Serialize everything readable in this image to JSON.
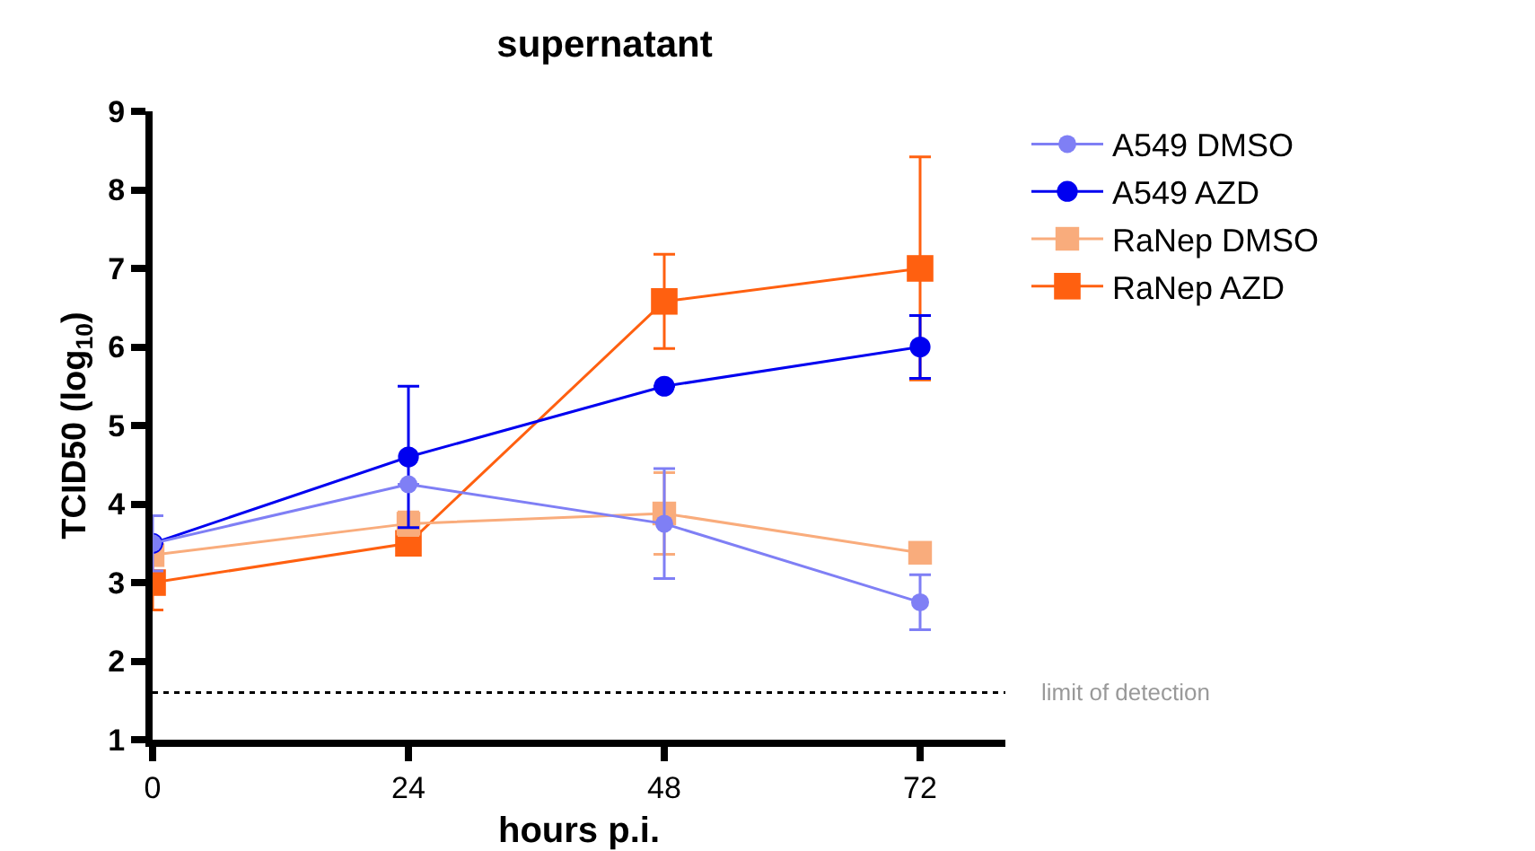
{
  "chart_data": {
    "type": "line",
    "title": "supernatant",
    "xlabel": "hours p.i.",
    "ylabel": "TCID50 (log$_{10}$)",
    "x": [
      0,
      24,
      48,
      72
    ],
    "series": [
      {
        "name": "A549 DMSO",
        "color": "#7f7ff5",
        "marker": "circle",
        "values": [
          3.5,
          4.25,
          3.75,
          2.75
        ],
        "errors": [
          0.35,
          null,
          0.7,
          0.35
        ]
      },
      {
        "name": "A549 AZD",
        "color": "#0000f0",
        "marker": "circle",
        "values": [
          3.5,
          4.6,
          5.5,
          6.0
        ],
        "errors": [
          null,
          0.9,
          null,
          0.4
        ]
      },
      {
        "name": "RaNep DMSO",
        "color": "#f9ac7c",
        "marker": "square",
        "values": [
          3.35,
          3.75,
          3.88,
          3.38
        ],
        "errors": [
          null,
          0.15,
          0.52,
          null
        ]
      },
      {
        "name": "RaNep AZD",
        "color": "#ff6010",
        "marker": "square",
        "values": [
          3.0,
          3.5,
          6.58,
          7.0
        ],
        "errors": [
          0.35,
          null,
          0.6,
          1.42
        ]
      }
    ],
    "xlim": [
      0,
      80
    ],
    "xticks": [
      0,
      24,
      48,
      72
    ],
    "ylim": [
      1,
      9
    ],
    "yticks": [
      1,
      2,
      3,
      4,
      5,
      6,
      7,
      8,
      9
    ],
    "grid": false,
    "legend": "top right",
    "ref_lines": [
      {
        "axis": "y",
        "value": 1.6,
        "label": "limit of detection",
        "color": "#000000",
        "line_style": "dotted"
      }
    ]
  }
}
